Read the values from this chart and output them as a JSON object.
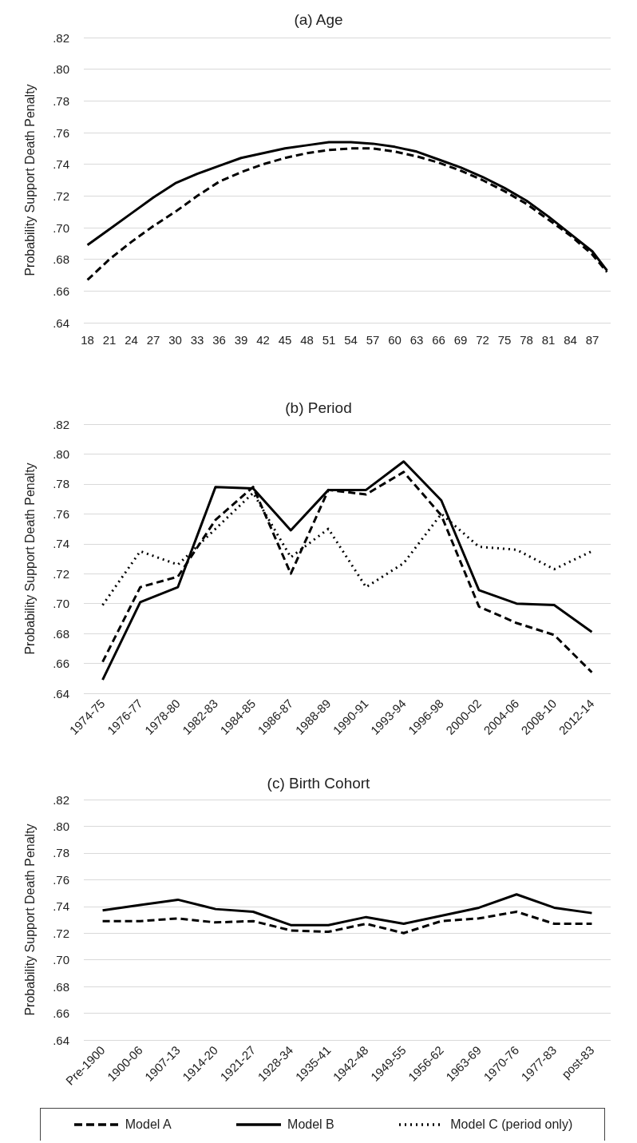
{
  "chart_data": [
    {
      "type": "line",
      "title": "(a) Age",
      "ylabel": "Probability Support Death Penalty",
      "x": [
        18,
        21,
        24,
        27,
        30,
        33,
        36,
        39,
        42,
        45,
        48,
        51,
        54,
        57,
        60,
        63,
        66,
        69,
        72,
        75,
        78,
        81,
        84,
        87,
        89
      ],
      "xlim": [
        17.5,
        89.5
      ],
      "xticks": [
        18,
        21,
        24,
        27,
        30,
        33,
        36,
        39,
        42,
        45,
        48,
        51,
        54,
        57,
        60,
        63,
        66,
        69,
        72,
        75,
        78,
        81,
        84,
        87
      ],
      "ylim": [
        0.64,
        0.82
      ],
      "yticks": [
        {
          "value": 0.64,
          "label": ".64"
        },
        {
          "value": 0.66,
          "label": ".66"
        },
        {
          "value": 0.68,
          "label": ".68"
        },
        {
          "value": 0.7,
          "label": ".70"
        },
        {
          "value": 0.72,
          "label": ".72"
        },
        {
          "value": 0.74,
          "label": ".74"
        },
        {
          "value": 0.76,
          "label": ".76"
        },
        {
          "value": 0.78,
          "label": ".78"
        },
        {
          "value": 0.8,
          "label": ".80"
        },
        {
          "value": 0.82,
          "label": ".82"
        }
      ],
      "grid": "y",
      "marker": "none",
      "legend": "bottom",
      "series": [
        {
          "name": "Model A",
          "color": "#000000",
          "line_style": "dashed",
          "values": [
            0.667,
            0.68,
            0.691,
            0.701,
            0.71,
            0.72,
            0.729,
            0.735,
            0.74,
            0.744,
            0.747,
            0.749,
            0.75,
            0.75,
            0.748,
            0.745,
            0.741,
            0.736,
            0.73,
            0.723,
            0.715,
            0.705,
            0.695,
            0.683,
            0.672
          ]
        },
        {
          "name": "Model B",
          "color": "#000000",
          "line_style": "solid",
          "values": [
            0.689,
            0.699,
            0.709,
            0.719,
            0.728,
            0.734,
            0.739,
            0.744,
            0.747,
            0.75,
            0.752,
            0.754,
            0.754,
            0.753,
            0.751,
            0.748,
            0.743,
            0.738,
            0.732,
            0.725,
            0.717,
            0.707,
            0.696,
            0.685,
            0.673
          ]
        }
      ]
    },
    {
      "type": "line",
      "title": "(b) Period",
      "ylabel": "Probability Support Death Penalty",
      "categories": [
        "1974-75",
        "1976-77",
        "1978-80",
        "1982-83",
        "1984-85",
        "1986-87",
        "1988-89",
        "1990-91",
        "1993-94",
        "1996-98",
        "2000-02",
        "2004-06",
        "2008-10",
        "2012-14"
      ],
      "ylim": [
        0.64,
        0.82
      ],
      "yticks": [
        {
          "value": 0.64,
          "label": ".64"
        },
        {
          "value": 0.66,
          "label": ".66"
        },
        {
          "value": 0.68,
          "label": ".68"
        },
        {
          "value": 0.7,
          "label": ".70"
        },
        {
          "value": 0.72,
          "label": ".72"
        },
        {
          "value": 0.74,
          "label": ".74"
        },
        {
          "value": 0.76,
          "label": ".76"
        },
        {
          "value": 0.78,
          "label": ".78"
        },
        {
          "value": 0.8,
          "label": ".80"
        },
        {
          "value": 0.82,
          "label": ".82"
        }
      ],
      "grid": "y",
      "marker": "none",
      "legend": "bottom",
      "series": [
        {
          "name": "Model A",
          "color": "#000000",
          "line_style": "dashed",
          "values": [
            0.661,
            0.711,
            0.718,
            0.756,
            0.778,
            0.72,
            0.776,
            0.773,
            0.788,
            0.759,
            0.698,
            0.687,
            0.679,
            0.654
          ]
        },
        {
          "name": "Model B",
          "color": "#000000",
          "line_style": "solid",
          "values": [
            0.649,
            0.701,
            0.711,
            0.778,
            0.777,
            0.749,
            0.776,
            0.776,
            0.795,
            0.769,
            0.709,
            0.7,
            0.699,
            0.681
          ]
        },
        {
          "name": "Model C (period only)",
          "color": "#000000",
          "line_style": "dotted",
          "values": [
            0.699,
            0.735,
            0.726,
            0.75,
            0.774,
            0.731,
            0.75,
            0.711,
            0.727,
            0.76,
            0.738,
            0.736,
            0.723,
            0.735
          ]
        }
      ]
    },
    {
      "type": "line",
      "title": "(c) Birth Cohort",
      "ylabel": "Probability Support Death Penalty",
      "categories": [
        "Pre-1900",
        "1900-06",
        "1907-13",
        "1914-20",
        "1921-27",
        "1928-34",
        "1935-41",
        "1942-48",
        "1949-55",
        "1956-62",
        "1963-69",
        "1970-76",
        "1977-83",
        "post-83"
      ],
      "ylim": [
        0.64,
        0.82
      ],
      "yticks": [
        {
          "value": 0.64,
          "label": ".64"
        },
        {
          "value": 0.66,
          "label": ".66"
        },
        {
          "value": 0.68,
          "label": ".68"
        },
        {
          "value": 0.7,
          "label": ".70"
        },
        {
          "value": 0.72,
          "label": ".72"
        },
        {
          "value": 0.74,
          "label": ".74"
        },
        {
          "value": 0.76,
          "label": ".76"
        },
        {
          "value": 0.78,
          "label": ".78"
        },
        {
          "value": 0.8,
          "label": ".80"
        },
        {
          "value": 0.82,
          "label": ".82"
        }
      ],
      "grid": "y",
      "marker": "none",
      "legend": "bottom",
      "series": [
        {
          "name": "Model A",
          "color": "#000000",
          "line_style": "dashed",
          "values": [
            0.729,
            0.729,
            0.731,
            0.728,
            0.729,
            0.722,
            0.721,
            0.727,
            0.72,
            0.729,
            0.731,
            0.736,
            0.727,
            0.727
          ]
        },
        {
          "name": "Model B",
          "color": "#000000",
          "line_style": "solid",
          "values": [
            0.737,
            0.741,
            0.745,
            0.738,
            0.736,
            0.726,
            0.726,
            0.732,
            0.727,
            0.733,
            0.739,
            0.749,
            0.739,
            0.735
          ]
        }
      ]
    }
  ]
}
